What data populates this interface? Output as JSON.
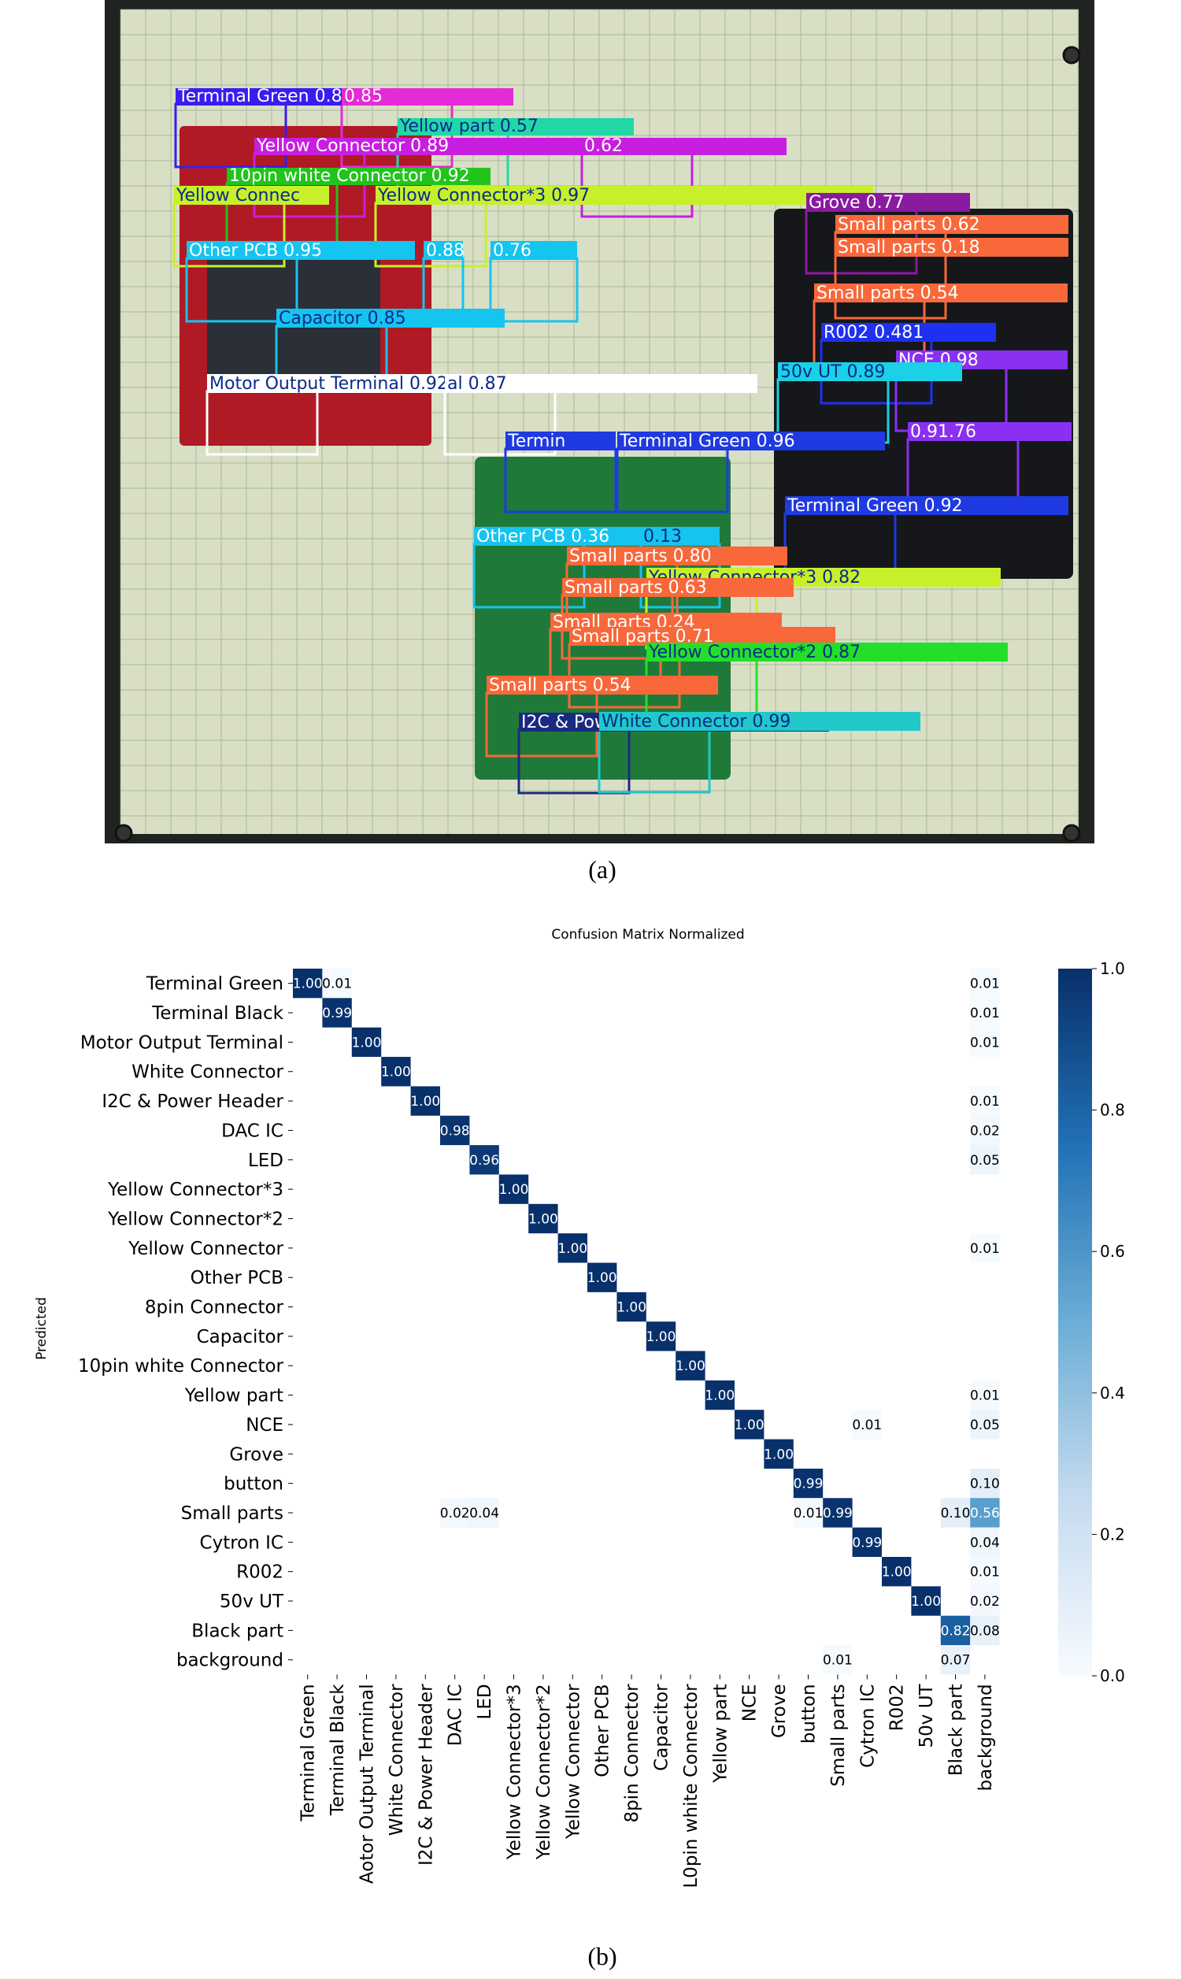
{
  "captions": {
    "a": "(a)",
    "b": "(b)"
  },
  "colors": {
    "board_frame": "#1f2420",
    "board_surface": "#d9dfc4",
    "grid_line": "#9aa28f",
    "pcb_red": "#b01a24",
    "pcb_black": "#15171a",
    "pcb_green": "#1f7a3a",
    "cmap_low": "#f7fbff",
    "cmap_high": "#08306b"
  },
  "detections": [
    {
      "label": "Terminal Green 0.88",
      "color": "#3b1cf0",
      "text_color": "#ffffff"
    },
    {
      "label": "0.85",
      "color": "#e32bd7",
      "text_color": "#ffffff"
    },
    {
      "label": "Yellow part 0.57",
      "color": "#22d7a6",
      "text_color": "#0a2a8a"
    },
    {
      "label": "Yellow Connector 0.89",
      "color": "#c81ee0",
      "text_color": "#ffffff"
    },
    {
      "label": "0.62",
      "color": "#c81ee0",
      "text_color": "#ffffff"
    },
    {
      "label": "10pin white Connector 0.92",
      "color": "#22c41c",
      "text_color": "#ffffff"
    },
    {
      "label": "Yellow Connec",
      "color": "#c8f02a",
      "text_color": "#0a2a8a"
    },
    {
      "label": "Yellow Connector*3 0.97",
      "color": "#c8f02a",
      "text_color": "#0a2a8a"
    },
    {
      "label": "Other PCB 0.95",
      "color": "#15c4ef",
      "text_color": "#ffffff"
    },
    {
      "label": "0.88",
      "color": "#15c4ef",
      "text_color": "#ffffff"
    },
    {
      "label": "0.76",
      "color": "#15c4ef",
      "text_color": "#ffffff"
    },
    {
      "label": "Capacitor 0.85",
      "color": "#15c4ef",
      "text_color": "#0a2a8a"
    },
    {
      "label": "Motor Output Terminal 0.92",
      "color": "#ffffff",
      "text_color": "#0a2a8a"
    },
    {
      "label": "al 0.87",
      "color": "#ffffff",
      "text_color": "#0a2a8a"
    },
    {
      "label": "Grove 0.77",
      "color": "#8a1aa0",
      "text_color": "#ffffff"
    },
    {
      "label": "Small parts 0.62",
      "color": "#f8683a",
      "text_color": "#ffffff"
    },
    {
      "label": "Small parts 0.18",
      "color": "#f8683a",
      "text_color": "#ffffff"
    },
    {
      "label": "Small parts 0.54",
      "color": "#f8683a",
      "text_color": "#ffffff"
    },
    {
      "label": "R002 0.481",
      "color": "#2030f0",
      "text_color": "#ffffff"
    },
    {
      "label": "NCE 0.98",
      "color": "#8a30f0",
      "text_color": "#ffffff"
    },
    {
      "label": "50v UT 0.89",
      "color": "#1ad1e6",
      "text_color": "#0a2a8a"
    },
    {
      "label": "Termin",
      "color": "#1f3ae0",
      "text_color": "#ffffff"
    },
    {
      "label": "Terminal Green 0.96",
      "color": "#1f3ae0",
      "text_color": "#ffffff"
    },
    {
      "label": "0.91.76",
      "color": "#8a30f0",
      "text_color": "#ffffff"
    },
    {
      "label": "Terminal Green 0.92",
      "color": "#1f3ae0",
      "text_color": "#ffffff"
    },
    {
      "label": "Other PCB 0.36",
      "color": "#15c4ef",
      "text_color": "#ffffff"
    },
    {
      "label": "0.13",
      "color": "#15c4ef",
      "text_color": "#0a2a8a"
    },
    {
      "label": "Small parts 0.80",
      "color": "#f8683a",
      "text_color": "#ffffff"
    },
    {
      "label": "Yellow Connector*3 0.82",
      "color": "#c8f02a",
      "text_color": "#0a2a8a"
    },
    {
      "label": "Small parts 0.63",
      "color": "#f8683a",
      "text_color": "#ffffff"
    },
    {
      "label": "Small parts 0.24",
      "color": "#f8683a",
      "text_color": "#ffffff"
    },
    {
      "label": "Small parts 0.71",
      "color": "#f8683a",
      "text_color": "#ffffff"
    },
    {
      "label": "Yellow Connector*2 0.87",
      "color": "#22e02a",
      "text_color": "#0a2a8a"
    },
    {
      "label": "Small parts 0.54",
      "color": "#f8683a",
      "text_color": "#ffffff"
    },
    {
      "label": "I2C & Power Header 0.89",
      "color": "#1a2a80",
      "text_color": "#ffffff"
    },
    {
      "label": "White Connector 0.99",
      "color": "#20c8c8",
      "text_color": "#0a2a8a"
    }
  ],
  "chart_data": {
    "type": "heatmap",
    "title": "Confusion Matrix Normalized",
    "ylabel": "Predicted",
    "xlabel": "",
    "colorbar": {
      "range": [
        0.0,
        1.0
      ],
      "ticks": [
        "1.0",
        "0.8",
        "0.6",
        "0.4",
        "0.2",
        "0.0"
      ],
      "colormap": "Blues"
    },
    "row_labels": [
      "Terminal Green",
      "Terminal Black",
      "Motor Output Terminal",
      "White Connector",
      "I2C & Power Header",
      "DAC IC",
      "LED",
      "Yellow Connector*3",
      "Yellow Connector*2",
      "Yellow Connector",
      "Other PCB",
      "8pin Connector",
      "Capacitor",
      "10pin white Connector",
      "Yellow part",
      "NCE",
      "Grove",
      "button",
      "Small parts",
      "Cytron IC",
      "R002",
      "50v UT",
      "Black part",
      "background"
    ],
    "col_labels": [
      "Terminal Green",
      "Terminal Black",
      "Motor Output Terminal",
      "White Connector",
      "I2C & Power Header",
      "DAC IC",
      "LED",
      "Yellow Connector*3",
      "Yellow Connector*2",
      "Yellow Connector",
      "Other PCB",
      "8pin Connector",
      "Capacitor",
      "10pin white Connector",
      "Yellow part",
      "NCE",
      "Grove",
      "button",
      "Small parts",
      "Cytron IC",
      "R002",
      "50v UT",
      "Black part",
      "background"
    ],
    "col_tick_display": [
      "Terminal Green",
      "Terminal Black",
      "Aotor Output Terminal",
      "White Connector",
      "I2C & Power Header",
      "DAC IC",
      "LED",
      "Yellow Connector*3",
      "Yellow Connector*2",
      "Yellow Connector",
      "Other PCB",
      "8pin Connector",
      "Capacitor",
      "L0pin white Connector",
      "Yellow part",
      "NCE",
      "Grove",
      "button",
      "Small parts",
      "Cytron IC",
      "R002",
      "50v UT",
      "Black part",
      "background"
    ],
    "cells": [
      {
        "r": 0,
        "c": 0,
        "v": 1.0,
        "label": "1.00"
      },
      {
        "r": 0,
        "c": 1,
        "v": 0.01,
        "label": "0.01"
      },
      {
        "r": 0,
        "c": 23,
        "v": 0.01,
        "label": "0.01"
      },
      {
        "r": 1,
        "c": 1,
        "v": 0.99,
        "label": "0.99"
      },
      {
        "r": 1,
        "c": 23,
        "v": 0.01,
        "label": "0.01"
      },
      {
        "r": 2,
        "c": 2,
        "v": 1.0,
        "label": "1.00"
      },
      {
        "r": 2,
        "c": 23,
        "v": 0.01,
        "label": "0.01"
      },
      {
        "r": 3,
        "c": 3,
        "v": 1.0,
        "label": "1.00"
      },
      {
        "r": 4,
        "c": 4,
        "v": 1.0,
        "label": "1.00"
      },
      {
        "r": 4,
        "c": 23,
        "v": 0.01,
        "label": "0.01"
      },
      {
        "r": 5,
        "c": 5,
        "v": 0.98,
        "label": "0.98"
      },
      {
        "r": 5,
        "c": 23,
        "v": 0.02,
        "label": "0.02"
      },
      {
        "r": 6,
        "c": 6,
        "v": 0.96,
        "label": "0.96"
      },
      {
        "r": 6,
        "c": 23,
        "v": 0.05,
        "label": "0.05"
      },
      {
        "r": 7,
        "c": 7,
        "v": 1.0,
        "label": "1.00"
      },
      {
        "r": 8,
        "c": 8,
        "v": 1.0,
        "label": "1.00"
      },
      {
        "r": 9,
        "c": 9,
        "v": 1.0,
        "label": "1.00"
      },
      {
        "r": 9,
        "c": 23,
        "v": 0.01,
        "label": "0.01"
      },
      {
        "r": 10,
        "c": 10,
        "v": 1.0,
        "label": "1.00"
      },
      {
        "r": 11,
        "c": 11,
        "v": 1.0,
        "label": "1.00"
      },
      {
        "r": 12,
        "c": 12,
        "v": 1.0,
        "label": "1.00"
      },
      {
        "r": 13,
        "c": 13,
        "v": 1.0,
        "label": "1.00"
      },
      {
        "r": 14,
        "c": 14,
        "v": 1.0,
        "label": "1.00"
      },
      {
        "r": 14,
        "c": 23,
        "v": 0.01,
        "label": "0.01"
      },
      {
        "r": 15,
        "c": 15,
        "v": 1.0,
        "label": "1.00"
      },
      {
        "r": 15,
        "c": 19,
        "v": 0.01,
        "label": "0.01"
      },
      {
        "r": 15,
        "c": 23,
        "v": 0.05,
        "label": "0.05"
      },
      {
        "r": 16,
        "c": 16,
        "v": 1.0,
        "label": "1.00"
      },
      {
        "r": 17,
        "c": 17,
        "v": 0.99,
        "label": "0.99"
      },
      {
        "r": 17,
        "c": 23,
        "v": 0.1,
        "label": "0.10"
      },
      {
        "r": 18,
        "c": 5,
        "v": 0.02,
        "label": "0.02"
      },
      {
        "r": 18,
        "c": 6,
        "v": 0.04,
        "label": "0.04"
      },
      {
        "r": 18,
        "c": 17,
        "v": 0.01,
        "label": "0.01"
      },
      {
        "r": 18,
        "c": 18,
        "v": 0.99,
        "label": "0.99"
      },
      {
        "r": 18,
        "c": 22,
        "v": 0.1,
        "label": "0.10"
      },
      {
        "r": 18,
        "c": 23,
        "v": 0.56,
        "label": "0.56"
      },
      {
        "r": 19,
        "c": 19,
        "v": 0.99,
        "label": "0.99"
      },
      {
        "r": 19,
        "c": 23,
        "v": 0.04,
        "label": "0.04"
      },
      {
        "r": 20,
        "c": 20,
        "v": 1.0,
        "label": "1.00"
      },
      {
        "r": 20,
        "c": 23,
        "v": 0.01,
        "label": "0.01"
      },
      {
        "r": 21,
        "c": 21,
        "v": 1.0,
        "label": "1.00"
      },
      {
        "r": 21,
        "c": 23,
        "v": 0.02,
        "label": "0.02"
      },
      {
        "r": 22,
        "c": 22,
        "v": 0.82,
        "label": "0.82"
      },
      {
        "r": 22,
        "c": 23,
        "v": 0.08,
        "label": "0.08"
      },
      {
        "r": 23,
        "c": 18,
        "v": 0.01,
        "label": "0.01"
      },
      {
        "r": 23,
        "c": 22,
        "v": 0.07,
        "label": "0.07"
      }
    ]
  }
}
